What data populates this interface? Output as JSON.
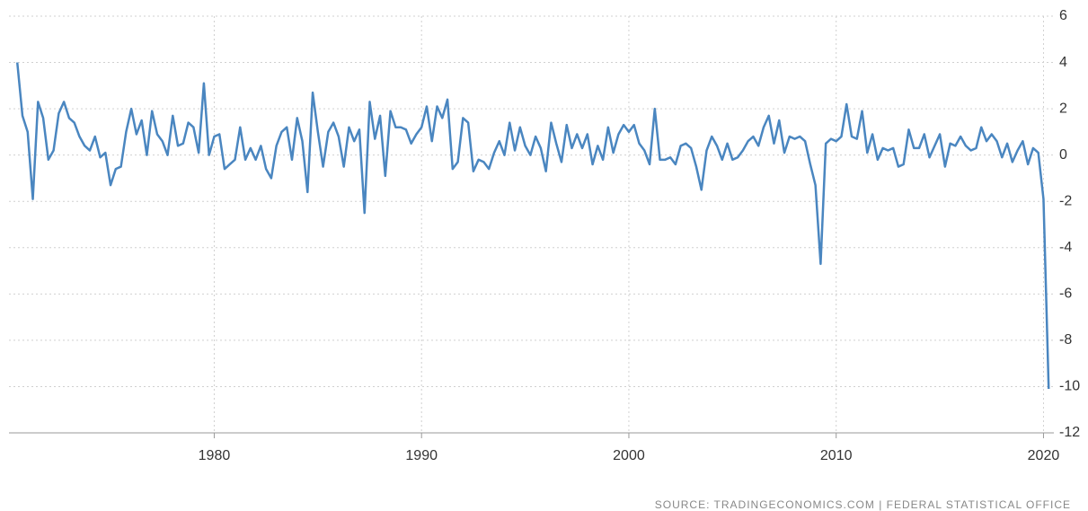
{
  "chart_data": {
    "type": "line",
    "source": "SOURCE: TRADINGECONOMICS.COM | FEDERAL STATISTICAL OFFICE",
    "x": [
      1970.5,
      1970.75,
      1971,
      1971.25,
      1971.5,
      1971.75,
      1972,
      1972.25,
      1972.5,
      1972.75,
      1973,
      1973.25,
      1973.5,
      1973.75,
      1974,
      1974.25,
      1974.5,
      1974.75,
      1975,
      1975.25,
      1975.5,
      1975.75,
      1976,
      1976.25,
      1976.5,
      1976.75,
      1977,
      1977.25,
      1977.5,
      1977.75,
      1978,
      1978.25,
      1978.5,
      1978.75,
      1979,
      1979.25,
      1979.5,
      1979.75,
      1980,
      1980.25,
      1980.5,
      1980.75,
      1981,
      1981.25,
      1981.5,
      1981.75,
      1982,
      1982.25,
      1982.5,
      1982.75,
      1983,
      1983.25,
      1983.5,
      1983.75,
      1984,
      1984.25,
      1984.5,
      1984.75,
      1985,
      1985.25,
      1985.5,
      1985.75,
      1986,
      1986.25,
      1986.5,
      1986.75,
      1987,
      1987.25,
      1987.5,
      1987.75,
      1988,
      1988.25,
      1988.5,
      1988.75,
      1989,
      1989.25,
      1989.5,
      1989.75,
      1990,
      1990.25,
      1990.5,
      1990.75,
      1991,
      1991.25,
      1991.5,
      1991.75,
      1992,
      1992.25,
      1992.5,
      1992.75,
      1993,
      1993.25,
      1993.5,
      1993.75,
      1994,
      1994.25,
      1994.5,
      1994.75,
      1995,
      1995.25,
      1995.5,
      1995.75,
      1996,
      1996.25,
      1996.5,
      1996.75,
      1997,
      1997.25,
      1997.5,
      1997.75,
      1998,
      1998.25,
      1998.5,
      1998.75,
      1999,
      1999.25,
      1999.5,
      1999.75,
      2000,
      2000.25,
      2000.5,
      2000.75,
      2001,
      2001.25,
      2001.5,
      2001.75,
      2002,
      2002.25,
      2002.5,
      2002.75,
      2003,
      2003.25,
      2003.5,
      2003.75,
      2004,
      2004.25,
      2004.5,
      2004.75,
      2005,
      2005.25,
      2005.5,
      2005.75,
      2006,
      2006.25,
      2006.5,
      2006.75,
      2007,
      2007.25,
      2007.5,
      2007.75,
      2008,
      2008.25,
      2008.5,
      2008.75,
      2009,
      2009.25,
      2009.5,
      2009.75,
      2010,
      2010.25,
      2010.5,
      2010.75,
      2011,
      2011.25,
      2011.5,
      2011.75,
      2012,
      2012.25,
      2012.5,
      2012.75,
      2013,
      2013.25,
      2013.5,
      2013.75,
      2014,
      2014.25,
      2014.5,
      2014.75,
      2015,
      2015.25,
      2015.5,
      2015.75,
      2016,
      2016.25,
      2016.5,
      2016.75,
      2017,
      2017.25,
      2017.5,
      2017.75,
      2018,
      2018.25,
      2018.5,
      2018.75,
      2019,
      2019.25,
      2019.5,
      2019.75,
      2020,
      2020.25
    ],
    "series": [
      {
        "color": "#4a86c0",
        "values": [
          4.0,
          1.7,
          1.0,
          -1.9,
          2.3,
          1.6,
          -0.2,
          0.2,
          1.8,
          2.3,
          1.6,
          1.4,
          0.8,
          0.4,
          0.2,
          0.8,
          -0.1,
          0.1,
          -1.3,
          -0.6,
          -0.5,
          1.0,
          2.0,
          0.9,
          1.5,
          0.0,
          1.9,
          0.9,
          0.6,
          0.0,
          1.7,
          0.4,
          0.5,
          1.4,
          1.2,
          0.1,
          3.1,
          0.0,
          0.8,
          0.9,
          -0.6,
          -0.4,
          -0.2,
          1.2,
          -0.2,
          0.3,
          -0.2,
          0.4,
          -0.6,
          -1.0,
          0.4,
          1.0,
          1.2,
          -0.2,
          1.6,
          0.6,
          -1.6,
          2.7,
          1.0,
          -0.5,
          1.0,
          1.4,
          0.8,
          -0.5,
          1.2,
          0.6,
          1.1,
          -2.5,
          2.3,
          0.7,
          1.7,
          -0.9,
          1.9,
          1.2,
          1.2,
          1.1,
          0.5,
          0.9,
          1.2,
          2.1,
          0.6,
          2.1,
          1.6,
          2.4,
          -0.6,
          -0.3,
          1.6,
          1.4,
          -0.7,
          -0.2,
          -0.3,
          -0.6,
          0.1,
          0.6,
          0.0,
          1.4,
          0.2,
          1.2,
          0.4,
          0.0,
          0.8,
          0.3,
          -0.7,
          1.4,
          0.5,
          -0.3,
          1.3,
          0.3,
          0.9,
          0.3,
          0.9,
          -0.4,
          0.4,
          -0.2,
          1.2,
          0.1,
          0.9,
          1.3,
          1.0,
          1.3,
          0.5,
          0.2,
          -0.4,
          2.0,
          -0.2,
          -0.2,
          -0.1,
          -0.4,
          0.4,
          0.5,
          0.3,
          -0.5,
          -1.5,
          0.2,
          0.8,
          0.4,
          -0.2,
          0.5,
          -0.2,
          -0.1,
          0.2,
          0.6,
          0.8,
          0.4,
          1.2,
          1.7,
          0.5,
          1.5,
          0.1,
          0.8,
          0.7,
          0.8,
          0.6,
          -0.4,
          -1.3,
          -4.7,
          0.5,
          0.7,
          0.6,
          0.8,
          2.2,
          0.8,
          0.7,
          1.9,
          0.1,
          0.9,
          -0.2,
          0.3,
          0.2,
          0.3,
          -0.5,
          -0.4,
          1.1,
          0.3,
          0.3,
          0.9,
          -0.1,
          0.4,
          0.9,
          -0.5,
          0.5,
          0.4,
          0.8,
          0.4,
          0.2,
          0.3,
          1.2,
          0.6,
          0.9,
          0.6,
          -0.1,
          0.5,
          -0.3,
          0.2,
          0.6,
          -0.4,
          0.3,
          0.1,
          -1.9,
          -10.1
        ]
      }
    ],
    "xlim": [
      1970.1,
      2020.5
    ],
    "xticks": [
      1980,
      1990,
      2000,
      2010,
      2020
    ],
    "ylim": [
      -12,
      6
    ],
    "yticks": [
      -12,
      -10,
      -8,
      -6,
      -4,
      -2,
      0,
      2,
      4,
      6
    ],
    "grid": true
  }
}
